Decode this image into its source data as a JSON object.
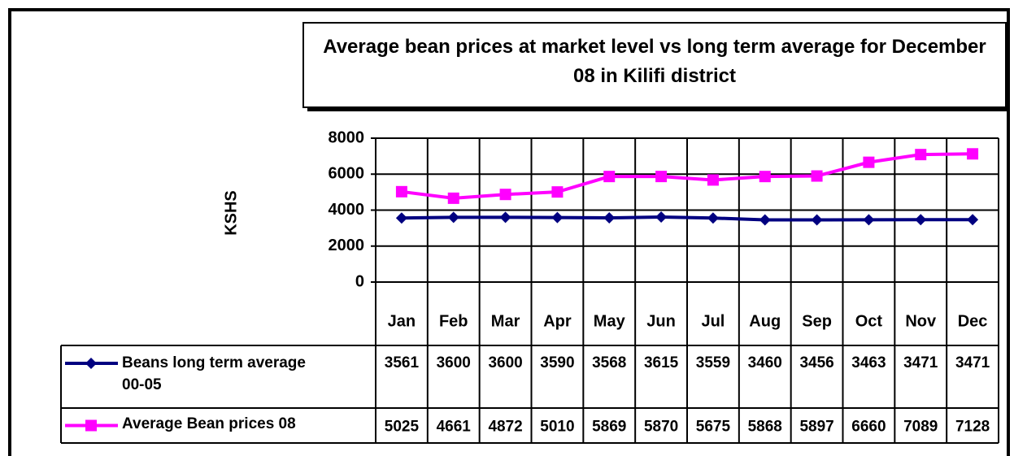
{
  "chart_data": {
    "type": "line",
    "title": "Average bean prices at market level vs long term average for December  08 in Kilifi district",
    "y_label": "KSHS",
    "categories": [
      "Jan",
      "Feb",
      "Mar",
      "Apr",
      "May",
      "Jun",
      "Jul",
      "Aug",
      "Sep",
      "Oct",
      "Nov",
      "Dec"
    ],
    "series": [
      {
        "name": "Beans long term average 00-05",
        "color": "#000080",
        "marker": "diamond",
        "values": [
          3561,
          3600,
          3600,
          3590,
          3568,
          3615,
          3559,
          3460,
          3456,
          3463,
          3471,
          3471
        ]
      },
      {
        "name": "Average Bean prices 08",
        "color": "#ff00ff",
        "marker": "square",
        "values": [
          5025,
          4661,
          4872,
          5010,
          5869,
          5870,
          5675,
          5868,
          5897,
          6660,
          7089,
          7128
        ]
      }
    ],
    "ylim": [
      0,
      8000
    ],
    "yticks": [
      0,
      2000,
      4000,
      6000,
      8000
    ],
    "grid": true,
    "data_table": true
  }
}
